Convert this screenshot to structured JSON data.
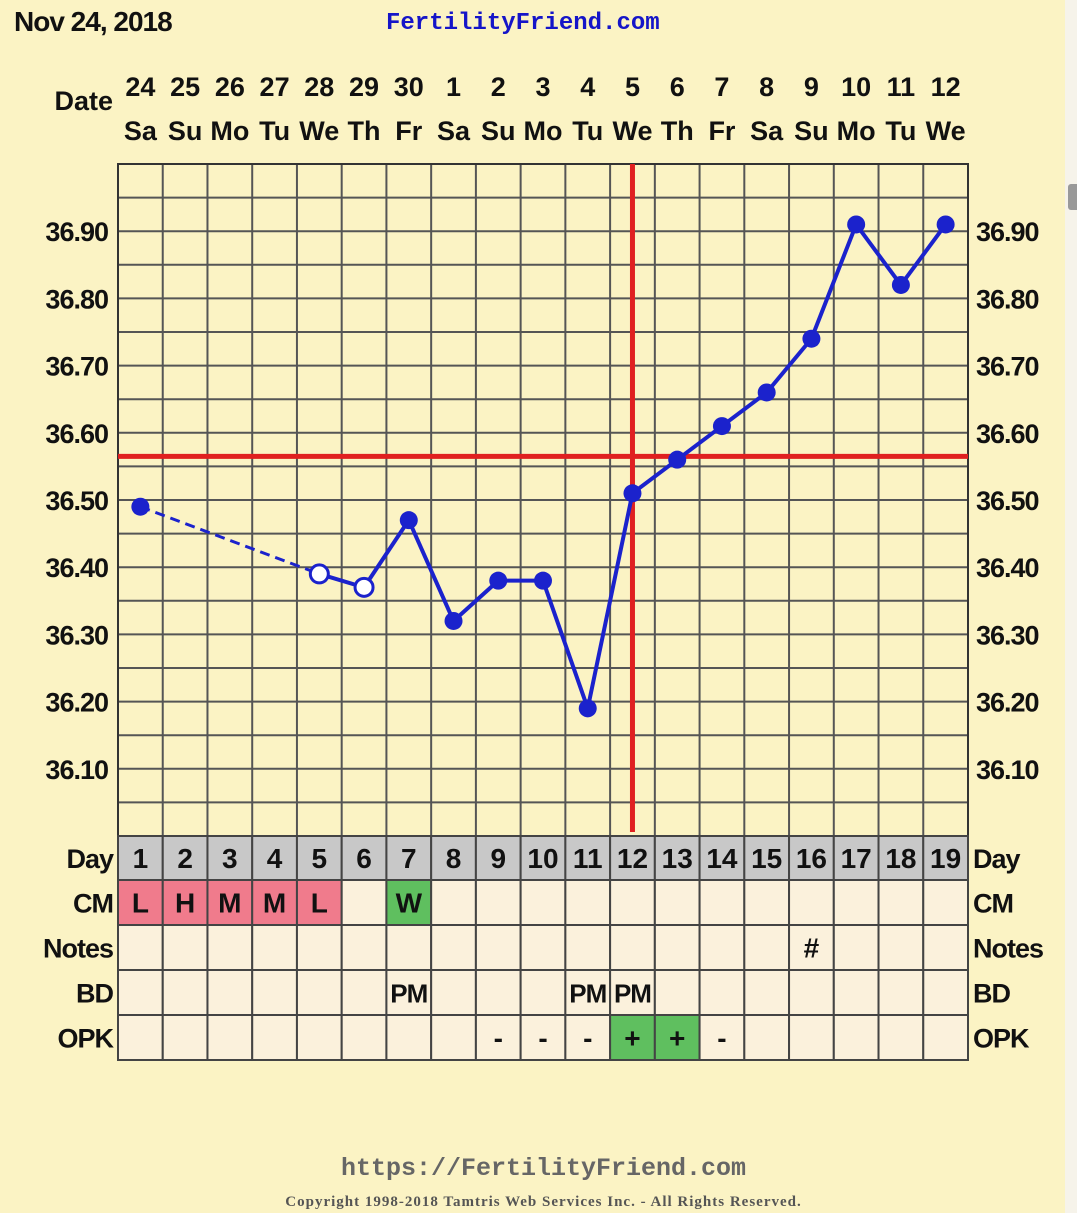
{
  "header": {
    "chart_date": "Nov 24, 2018",
    "site": "FertilityFriend.com"
  },
  "footer": {
    "url": "https://FertilityFriend.com",
    "copyright": "Copyright 1998-2018 Tamtris Web Services Inc. - All Rights Reserved."
  },
  "colors": {
    "background": "#fbf3c4",
    "temp_line": "#1b22cc",
    "coverline": "#e02020",
    "grid": "#555555",
    "cm_fertile": "#f07b8c",
    "cm_egg_white": "#5fbf5f",
    "opk_positive": "#5fbf5f",
    "day_row": "#c8c8c8",
    "cell": "#fbf1dc"
  },
  "chart_data": {
    "type": "line",
    "title": "",
    "row_labels": {
      "date": "Date",
      "day": "Day",
      "cm": "CM",
      "notes": "Notes",
      "bd": "BD",
      "opk": "OPK"
    },
    "dates": [
      "24",
      "25",
      "26",
      "27",
      "28",
      "29",
      "30",
      "1",
      "2",
      "3",
      "4",
      "5",
      "6",
      "7",
      "8",
      "9",
      "10",
      "11",
      "12"
    ],
    "weekdays": [
      "Sa",
      "Su",
      "Mo",
      "Tu",
      "We",
      "Th",
      "Fr",
      "Sa",
      "Su",
      "Mo",
      "Tu",
      "We",
      "Th",
      "Fr",
      "Sa",
      "Su",
      "Mo",
      "Tu",
      "We"
    ],
    "cycle_days": [
      "1",
      "2",
      "3",
      "4",
      "5",
      "6",
      "7",
      "8",
      "9",
      "10",
      "11",
      "12",
      "13",
      "14",
      "15",
      "16",
      "17",
      "18",
      "19"
    ],
    "temperatures": [
      36.49,
      null,
      null,
      null,
      36.39,
      36.37,
      36.47,
      36.32,
      36.38,
      36.38,
      36.19,
      36.51,
      36.56,
      36.61,
      36.66,
      36.74,
      36.91,
      36.82,
      36.91
    ],
    "discarded_days": [
      5,
      6
    ],
    "y_ticks": [
      "36.10",
      "36.20",
      "36.30",
      "36.40",
      "36.50",
      "36.60",
      "36.70",
      "36.80",
      "36.90"
    ],
    "ylim": [
      36.0,
      37.0
    ],
    "coverline": 36.565,
    "ovulation_day": 12,
    "grid": true,
    "cm": [
      "L",
      "H",
      "M",
      "M",
      "L",
      "",
      "W",
      "",
      "",
      "",
      "",
      "",
      "",
      "",
      "",
      "",
      "",
      "",
      ""
    ],
    "notes": [
      "",
      "",
      "",
      "",
      "",
      "",
      "",
      "",
      "",
      "",
      "",
      "",
      "",
      "",
      "",
      "#",
      "",
      "",
      ""
    ],
    "bd": [
      "",
      "",
      "",
      "",
      "",
      "",
      "PM",
      "",
      "",
      "",
      "PM",
      "PM",
      "",
      "",
      "",
      "",
      "",
      "",
      ""
    ],
    "opk": [
      "",
      "",
      "",
      "",
      "",
      "",
      "",
      "",
      "-",
      "-",
      "-",
      "+",
      "+",
      "-",
      "",
      "",
      "",
      "",
      ""
    ]
  }
}
